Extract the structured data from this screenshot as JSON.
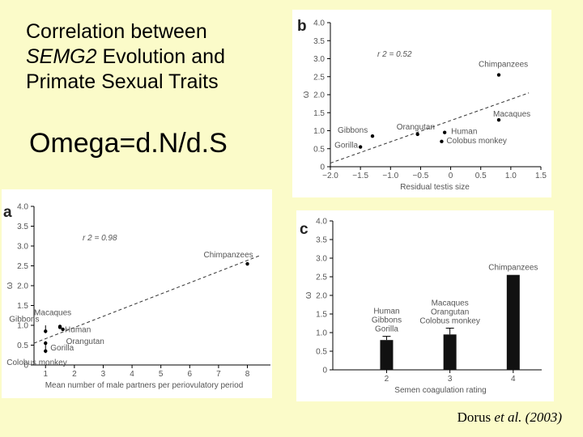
{
  "slide": {
    "title_line1": "Correlation between",
    "title_gene": "SEMG2",
    "title_line2_rest": " Evolution and",
    "title_line3": "Primate Sexual Traits",
    "omega": "Omega=d.N/d.S",
    "citation_author": "Dorus",
    "citation_etal": "et al.",
    "citation_year": "(2003)"
  },
  "chart_data": [
    {
      "id": "a",
      "panel_letter": "a",
      "type": "scatter",
      "xlabel": "Mean number of male partners per periovulatory period",
      "ylabel": "ω",
      "xlim": [
        0.6,
        8.8
      ],
      "ylim": [
        0,
        4.0
      ],
      "xticks": [
        1,
        2,
        3,
        4,
        5,
        6,
        7,
        8
      ],
      "yticks": [
        0,
        0.5,
        1.0,
        1.5,
        2.0,
        2.5,
        3.0,
        3.5,
        4.0
      ],
      "r2_label": "r 2 = 0.98",
      "trendline": {
        "x": [
          0.6,
          8.4
        ],
        "y": [
          0.55,
          2.75
        ]
      },
      "points": [
        {
          "x": 8.0,
          "y": 2.55,
          "label": "Chimpanzees"
        },
        {
          "x": 1.5,
          "y": 0.97,
          "label": "Macaques"
        },
        {
          "x": 1.0,
          "y": 0.85,
          "label": "Gibbons"
        },
        {
          "x": 1.5,
          "y": 0.95,
          "label": "Human"
        },
        {
          "x": 1.6,
          "y": 0.9,
          "label": "Orangutan"
        },
        {
          "x": 1.0,
          "y": 0.55,
          "label": "Gorilla"
        },
        {
          "x": 1.0,
          "y": 0.35,
          "label": "Colobus monkey"
        }
      ],
      "error_bars": [
        {
          "x": 1.0,
          "low": 0.8,
          "high": 1.0
        },
        {
          "x": 1.0,
          "low": 0.3,
          "high": 0.6
        }
      ]
    },
    {
      "id": "b",
      "panel_letter": "b",
      "type": "scatter",
      "xlabel": "Residual testis size",
      "ylabel": "ω",
      "xlim": [
        -2.0,
        1.5
      ],
      "ylim": [
        0,
        4.0
      ],
      "xticks": [
        -2.0,
        -1.5,
        -1.0,
        -0.5,
        0,
        0.5,
        1.0,
        1.5
      ],
      "xtick_labels": [
        "−2.0",
        "−1.5",
        "−1.0",
        "−0.5",
        "0",
        "0.5",
        "1.0",
        "1.5"
      ],
      "yticks": [
        0,
        0.5,
        1.0,
        1.5,
        2.0,
        2.5,
        3.0,
        3.5,
        4.0
      ],
      "r2_label": "r 2 = 0.52",
      "trendline": {
        "x": [
          -2.0,
          1.3
        ],
        "y": [
          0.1,
          2.05
        ]
      },
      "points": [
        {
          "x": 0.8,
          "y": 2.55,
          "label": "Chimpanzees"
        },
        {
          "x": 0.8,
          "y": 1.3,
          "label": "Macaques"
        },
        {
          "x": -0.55,
          "y": 0.9,
          "label": "Orangutan"
        },
        {
          "x": -1.3,
          "y": 0.85,
          "label": "Gibbons"
        },
        {
          "x": -0.1,
          "y": 0.95,
          "label": "Human"
        },
        {
          "x": -0.15,
          "y": 0.7,
          "label": "Colobus monkey"
        },
        {
          "x": -1.5,
          "y": 0.55,
          "label": "Gorilla"
        }
      ]
    },
    {
      "id": "c",
      "panel_letter": "c",
      "type": "bar",
      "xlabel": "Semen coagulation rating",
      "ylabel": "ω",
      "categories": [
        "2",
        "3",
        "4"
      ],
      "values": [
        0.8,
        0.95,
        2.55
      ],
      "error_high": [
        0.9,
        1.12,
        null
      ],
      "bar_labels": [
        [
          "Human",
          "Gibbons",
          "Gorilla"
        ],
        [
          "Macaques",
          "Orangutan",
          "Colobus monkey"
        ],
        [
          "Chimpanzees"
        ]
      ],
      "ylim": [
        0,
        4.0
      ],
      "yticks": [
        0,
        0.5,
        1.0,
        1.5,
        2.0,
        2.5,
        3.0,
        3.5,
        4.0
      ]
    }
  ]
}
